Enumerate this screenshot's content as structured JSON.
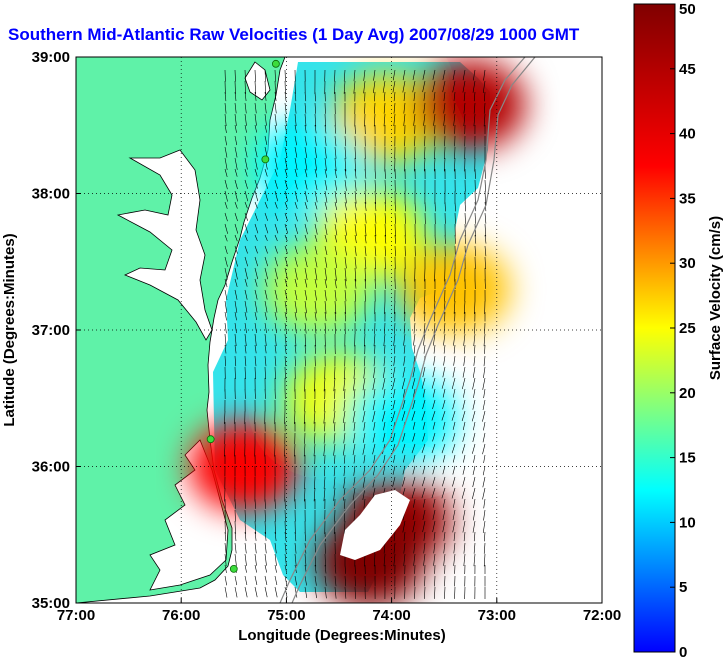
{
  "chart_data": {
    "type": "heatmap",
    "title": "Southern Mid-Atlantic Raw Velocities (1 Day Avg) 2007/08/29 1000 GMT",
    "xlabel": "Longitude (Degrees:Minutes)",
    "ylabel": "Latitude (Degrees:Minutes)",
    "colorbar_label": "Surface Velocity (cm/s)",
    "xlim": [
      -77,
      -72
    ],
    "ylim": [
      35,
      39
    ],
    "x_ticks": [
      {
        "value": -77,
        "label": "77:00"
      },
      {
        "value": -76,
        "label": "76:00"
      },
      {
        "value": -75,
        "label": "75:00"
      },
      {
        "value": -74,
        "label": "74:00"
      },
      {
        "value": -73,
        "label": "73:00"
      },
      {
        "value": -72,
        "label": "72:00"
      }
    ],
    "y_ticks": [
      {
        "value": 35,
        "label": "35:00"
      },
      {
        "value": 36,
        "label": "36:00"
      },
      {
        "value": 37,
        "label": "37:00"
      },
      {
        "value": 38,
        "label": "38:00"
      },
      {
        "value": 39,
        "label": "39:00"
      }
    ],
    "colorbar": {
      "range": [
        0,
        50
      ],
      "ticks": [
        0,
        5,
        10,
        15,
        20,
        25,
        30,
        35,
        40,
        45,
        50
      ]
    },
    "grid": true,
    "regions": [
      {
        "lon": -74.05,
        "lat": 38.55,
        "speed": 27
      },
      {
        "lon": -73.25,
        "lat": 38.65,
        "speed": 45
      },
      {
        "lon": -74.8,
        "lat": 38.2,
        "speed": 12
      },
      {
        "lon": -74.2,
        "lat": 37.7,
        "speed": 25
      },
      {
        "lon": -74.7,
        "lat": 37.3,
        "speed": 22
      },
      {
        "lon": -74.5,
        "lat": 36.5,
        "speed": 24
      },
      {
        "lon": -75.4,
        "lat": 36.0,
        "speed": 38
      },
      {
        "lon": -73.95,
        "lat": 35.6,
        "speed": 48
      },
      {
        "lon": -74.2,
        "lat": 35.3,
        "speed": 50
      },
      {
        "lon": -73.9,
        "lat": 36.35,
        "speed": 12
      },
      {
        "lon": -73.4,
        "lat": 37.3,
        "speed": 28
      }
    ],
    "site_markers": [
      {
        "lon": -75.1,
        "lat": 38.95
      },
      {
        "lon": -75.2,
        "lat": 38.25
      },
      {
        "lon": -75.72,
        "lat": 36.2
      },
      {
        "lon": -75.5,
        "lat": 35.25
      }
    ]
  }
}
